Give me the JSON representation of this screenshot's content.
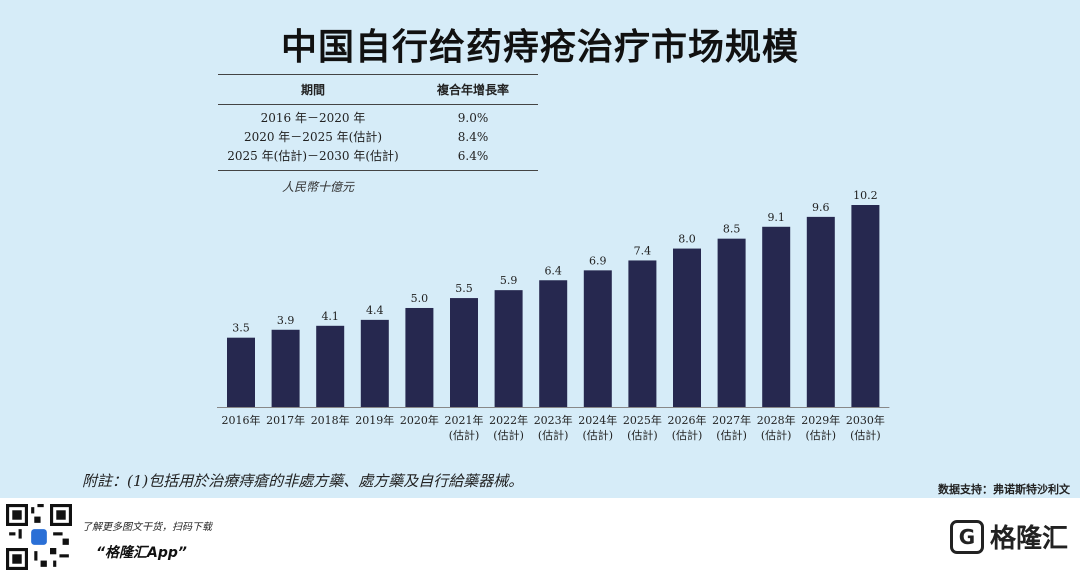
{
  "title": "中国自行给药痔疮治疗市场规模",
  "cagr_table": {
    "headers": [
      "期間",
      "複合年增長率"
    ],
    "rows": [
      {
        "period": "2016 年－2020 年",
        "rate": "9.0%"
      },
      {
        "period": "2020 年－2025 年(估計)",
        "rate": "8.4%"
      },
      {
        "period": "2025 年(估計)－2030 年(估計)",
        "rate": "6.4%"
      }
    ]
  },
  "unit_label": "人民幣十億元",
  "chart_data": {
    "type": "bar",
    "categories": [
      "2016年",
      "2017年",
      "2018年",
      "2019年",
      "2020年",
      "2021年",
      "2022年",
      "2023年",
      "2024年",
      "2025年",
      "2026年",
      "2027年",
      "2028年",
      "2029年",
      "2030年"
    ],
    "category_sublabels": [
      "",
      "",
      "",
      "",
      "",
      "(估計)",
      "(估計)",
      "(估計)",
      "(估計)",
      "(估計)",
      "(估計)",
      "(估計)",
      "(估計)",
      "(估計)",
      "(估計)"
    ],
    "values": [
      3.5,
      3.9,
      4.1,
      4.4,
      5.0,
      5.5,
      5.9,
      6.4,
      6.9,
      7.4,
      8.0,
      8.5,
      9.1,
      9.6,
      10.2
    ],
    "value_labels": [
      "3.5",
      "3.9",
      "4.1",
      "4.4",
      "5.0",
      "5.5",
      "5.9",
      "6.4",
      "6.9",
      "7.4",
      "8.0",
      "8.5",
      "9.1",
      "9.6",
      "10.2"
    ],
    "bar_color": "#26284f",
    "ylim": [
      0,
      10.2
    ],
    "grid": false,
    "xlabel": "",
    "ylabel": ""
  },
  "footnote": "附註：(1)包括用於治療痔瘡的非處方藥、處方藥及自行給藥器械。",
  "source": "数据支持：弗诺斯特沙利文",
  "footer": {
    "promo_text": "了解更多图文干货，扫码下载",
    "app_name": "“格隆汇App”",
    "logo_text": "格隆汇",
    "logo_mark": "G"
  }
}
